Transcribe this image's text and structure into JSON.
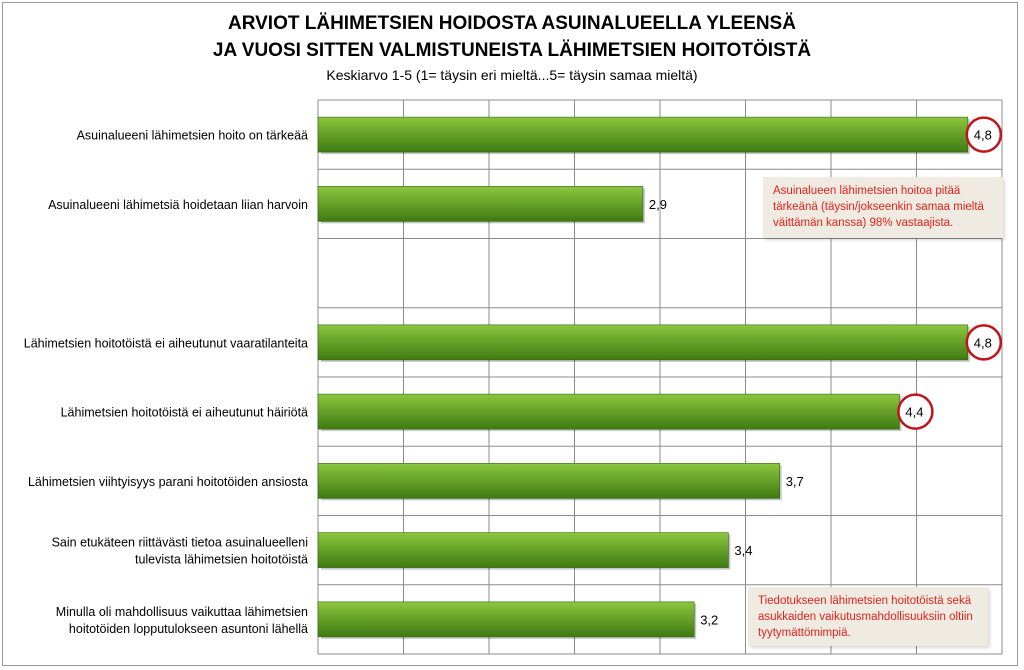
{
  "chart_data": {
    "type": "bar",
    "orientation": "horizontal",
    "title": "ARVIOT LÄHIMETSIEN HOIDOSTA ASUINALUEELLA YLEENSÄ",
    "title_line2": "JA VUOSI SITTEN VALMISTUNEISTA LÄHIMETSIEN HOITOTÖISTÄ",
    "subtitle": "Keskiarvo 1-5 (1= täysin eri mieltä...5= täysin samaa mieltä)",
    "xlim": [
      1,
      5
    ],
    "grid": true,
    "legend": "none",
    "categories": [
      "Asuinalueeni lähimetsien hoito on tärkeää",
      "Asuinalueeni lähimetsiä hoidetaan liian harvoin",
      "",
      "Lähimetsien hoitotöistä ei aiheutunut vaaratilanteita",
      "Lähimetsien hoitotöistä ei aiheutunut häiriötä",
      "Lähimetsien viihtyisyys parani hoitotöiden ansiosta",
      "Sain etukäteen riittävästi tietoa asuinalueelleni tulevista lähimetsien hoitotöistä",
      "Minulla oli mahdollisuus vaikuttaa lähimetsien hoitotöiden lopputulokseen asuntoni lähellä"
    ],
    "label_lines": [
      [
        "Asuinalueeni lähimetsien hoito on tärkeää"
      ],
      [
        "Asuinalueeni lähimetsiä hoidetaan liian harvoin"
      ],
      [],
      [
        "Lähimetsien hoitotöistä ei aiheutunut vaaratilanteita"
      ],
      [
        "Lähimetsien hoitotöistä ei aiheutunut häiriötä"
      ],
      [
        "Lähimetsien viihtyisyys parani hoitotöiden ansiosta"
      ],
      [
        "Sain etukäteen riittävästi tietoa asuinalueelleni",
        "tulevista lähimetsien hoitotöistä"
      ],
      [
        "Minulla oli mahdollisuus vaikuttaa lähimetsien",
        "hoitotöiden lopputulokseen asuntoni lähellä"
      ]
    ],
    "values": [
      4.8,
      2.9,
      null,
      4.8,
      4.4,
      3.7,
      3.4,
      3.2
    ],
    "value_labels": [
      "4,8",
      "2,9",
      "",
      "4,8",
      "4,4",
      "3,7",
      "3,4",
      "3,2"
    ],
    "highlighted": [
      true,
      false,
      false,
      true,
      true,
      false,
      false,
      false
    ],
    "annotations": [
      {
        "lines": [
          "Asuinalueen lähimetsien hoitoa pitää",
          "tärkeänä (täysin/jokseenkin samaa mieltä",
          "väittämän kanssa) 98% vastaajista."
        ]
      },
      {
        "lines": [
          "Tiedotukseen lähimetsien hoitotöistä sekä",
          "asukkaiden vaikutusmahdollisuuksiin oltiin",
          "tyytymättömimpiä."
        ]
      }
    ]
  },
  "colors": {
    "bar_light": "#8cc63f",
    "bar_dark": "#3e7a12",
    "highlight_circle": "#c0151b",
    "annotation_text": "#e2231a",
    "annotation_bg": "#efebe2",
    "grid": "#8c8c8c"
  }
}
